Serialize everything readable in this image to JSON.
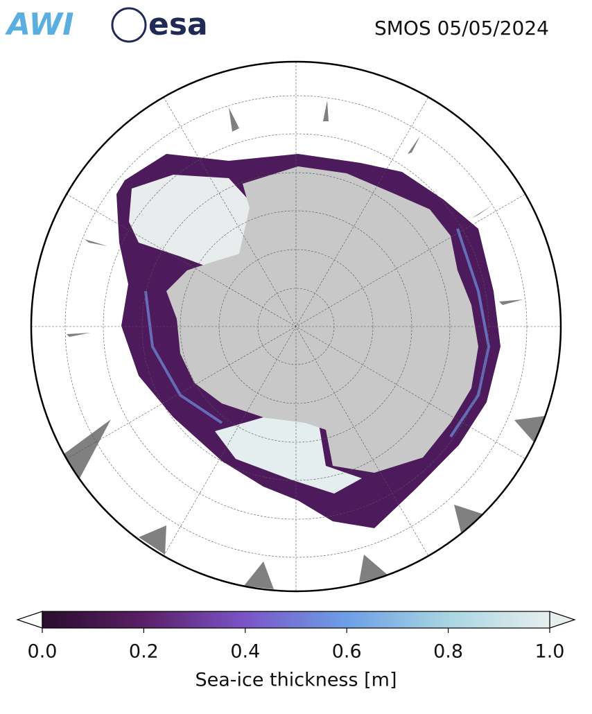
{
  "header": {
    "logos": [
      "AWI",
      "esa"
    ],
    "title": "SMOS 05/05/2024"
  },
  "colorbar": {
    "label": "Sea-ice thickness [m]",
    "lim": [
      0,
      1
    ],
    "ticks": [
      {
        "value": 0,
        "label": "0.0"
      },
      0.2,
      0.4,
      0.6,
      0.8,
      {
        "value": 1,
        "label": "1.0"
      }
    ],
    "colors": [
      "#2a0d2e",
      "#5a1f66",
      "#7a55c8",
      "#6d9fe6",
      "#a9d5e2",
      "#e6eeee"
    ]
  }
}
